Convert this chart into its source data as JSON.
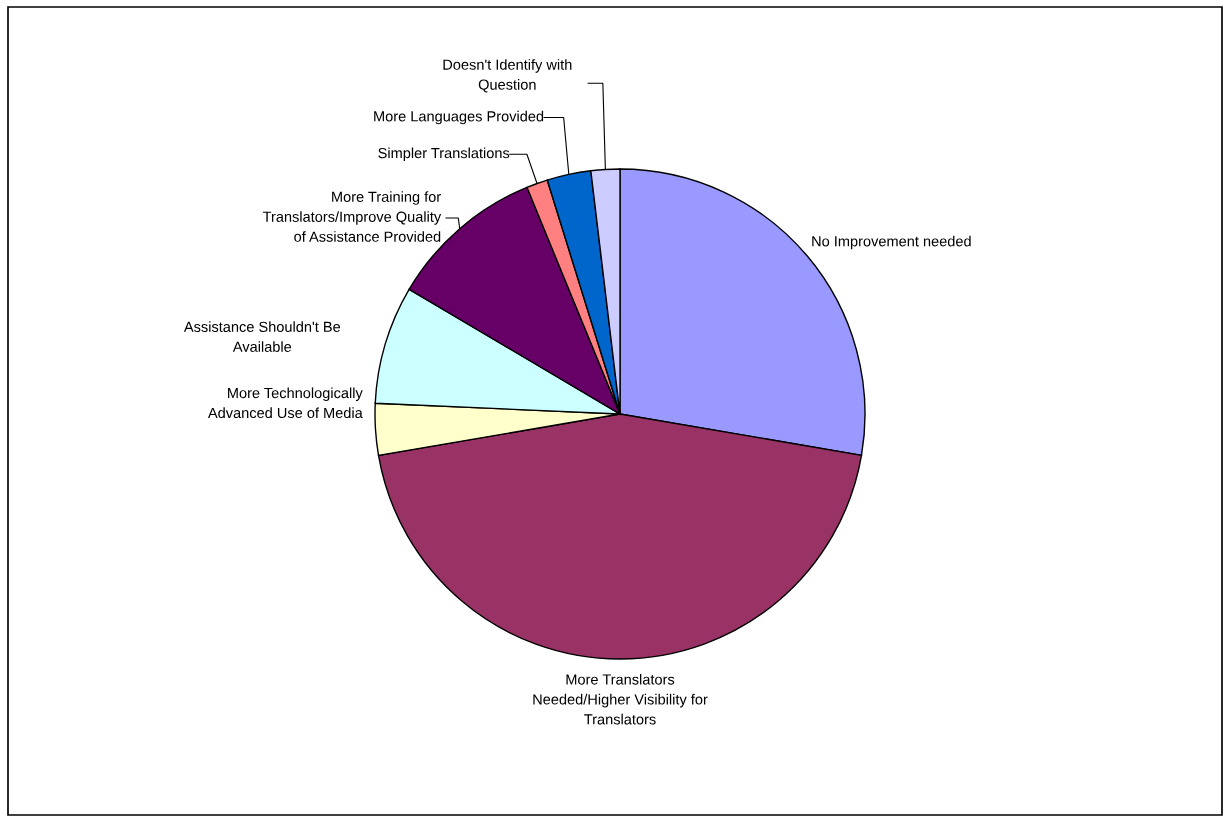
{
  "chart_data": {
    "type": "pie",
    "categories": [
      "No Improvement needed",
      "More Translators\nNeeded/Higher Visibility for\nTranslators",
      "More Technologically\nAdvanced Use of Media",
      "Assistance Shouldn't Be\nAvailable",
      "More Training for\nTranslators/Improve Quality\nof Assistance Provided",
      "Simpler Translations",
      "More Languages Provided",
      "Doesn't Identify with\nQuestion"
    ],
    "values": [
      27.7,
      44.6,
      3.4,
      7.8,
      10.3,
      1.4,
      2.9,
      1.9
    ],
    "colors": [
      "#9999ff",
      "#993366",
      "#ffffcc",
      "#ccffff",
      "#660066",
      "#ff8080",
      "#0066cc",
      "#ccccff"
    ],
    "legend": false
  }
}
